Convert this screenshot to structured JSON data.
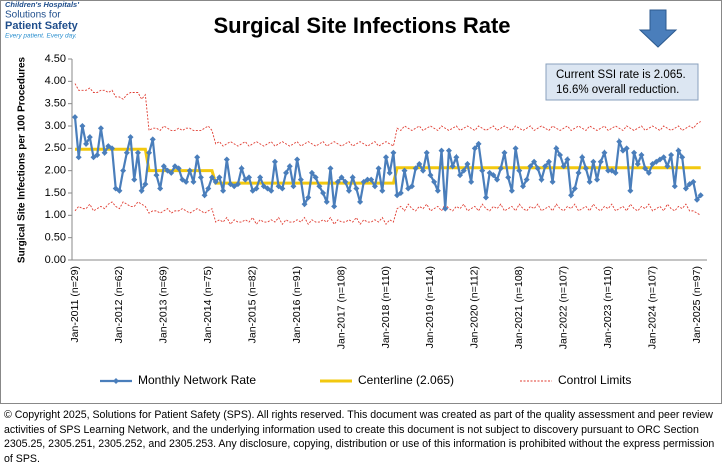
{
  "chart_data": {
    "type": "line",
    "title": "Surgical Site Infections Rate",
    "ylabel": "Surgical Site Infections per 100 Procedures",
    "annotation": [
      "Current SSI rate is 2.065.",
      "16.6% overall reduction."
    ],
    "logo": [
      "Children's Hospitals'",
      "Solutions for",
      "Patient Safety",
      "Every patient. Every day."
    ],
    "categories": [
      "Jan-2011 (n=29)",
      null,
      null,
      null,
      null,
      null,
      null,
      null,
      null,
      null,
      null,
      null,
      "Jan-2012 (n=62)",
      null,
      null,
      null,
      null,
      null,
      null,
      null,
      null,
      null,
      null,
      null,
      "Jan-2013 (n=69)",
      null,
      null,
      null,
      null,
      null,
      null,
      null,
      null,
      null,
      null,
      null,
      "Jan-2014 (n=75)",
      null,
      null,
      null,
      null,
      null,
      null,
      null,
      null,
      null,
      null,
      null,
      "Jan-2015 (n=82)",
      null,
      null,
      null,
      null,
      null,
      null,
      null,
      null,
      null,
      null,
      null,
      "Jan-2016 (n=91)",
      null,
      null,
      null,
      null,
      null,
      null,
      null,
      null,
      null,
      null,
      null,
      "Jan-2017 (n=108)",
      null,
      null,
      null,
      null,
      null,
      null,
      null,
      null,
      null,
      null,
      null,
      "Jan-2018 (n=110)",
      null,
      null,
      null,
      null,
      null,
      null,
      null,
      null,
      null,
      null,
      null,
      "Jan-2019 (n=114)",
      null,
      null,
      null,
      null,
      null,
      null,
      null,
      null,
      null,
      null,
      null,
      "Jan-2020 (n=112)",
      null,
      null,
      null,
      null,
      null,
      null,
      null,
      null,
      null,
      null,
      null,
      "Jan-2021 (n=108)",
      null,
      null,
      null,
      null,
      null,
      null,
      null,
      null,
      null,
      null,
      null,
      "Jan-2022 (n=107)",
      null,
      null,
      null,
      null,
      null,
      null,
      null,
      null,
      null,
      null,
      null,
      "Jan-2023 (n=110)",
      null,
      null,
      null,
      null,
      null,
      null,
      null,
      null,
      null,
      null,
      null,
      "Jan-2024 (n=107)",
      null,
      null,
      null,
      null,
      null,
      null,
      null,
      null,
      null,
      null,
      null,
      "Jan-2025 (n=97)",
      null
    ],
    "series": [
      {
        "name": "Monthly Network Rate",
        "color": "#4a7ebb",
        "values": [
          3.2,
          2.3,
          3.0,
          2.6,
          2.75,
          2.3,
          2.35,
          2.95,
          2.4,
          2.55,
          2.5,
          1.6,
          1.55,
          2.0,
          2.4,
          2.75,
          1.8,
          2.4,
          1.55,
          1.7,
          2.4,
          2.7,
          1.9,
          1.6,
          2.1,
          2.0,
          1.95,
          2.1,
          2.05,
          1.8,
          1.75,
          2.0,
          1.75,
          2.3,
          1.85,
          1.45,
          1.6,
          1.85,
          1.75,
          1.85,
          1.55,
          2.25,
          1.7,
          1.65,
          1.7,
          2.05,
          1.8,
          1.85,
          1.55,
          1.6,
          1.85,
          1.65,
          1.6,
          1.55,
          2.2,
          1.65,
          1.6,
          1.95,
          2.1,
          1.65,
          2.25,
          1.8,
          1.25,
          1.4,
          1.95,
          1.85,
          1.65,
          1.5,
          1.3,
          2.05,
          1.2,
          1.75,
          1.85,
          1.75,
          1.55,
          1.85,
          1.6,
          1.3,
          1.75,
          1.8,
          1.8,
          1.65,
          2.05,
          1.55,
          2.3,
          1.95,
          2.4,
          1.45,
          1.5,
          2.0,
          1.6,
          1.65,
          2.05,
          2.15,
          2.0,
          2.4,
          1.9,
          1.75,
          1.55,
          2.45,
          1.15,
          2.45,
          2.1,
          2.3,
          1.9,
          2.0,
          2.15,
          1.75,
          2.5,
          2.6,
          2.0,
          1.4,
          1.95,
          1.9,
          1.8,
          2.05,
          2.4,
          1.85,
          1.55,
          2.5,
          2.0,
          1.65,
          1.8,
          2.1,
          2.2,
          2.05,
          1.8,
          2.1,
          2.2,
          1.75,
          2.5,
          2.35,
          2.1,
          2.25,
          1.45,
          1.6,
          1.95,
          2.3,
          2.05,
          1.75,
          2.2,
          1.8,
          2.2,
          2.4,
          2.0,
          2.0,
          1.95,
          2.65,
          2.45,
          2.5,
          1.55,
          2.4,
          2.15,
          2.35,
          2.05,
          1.95,
          2.15,
          2.2,
          2.25,
          2.3,
          2.1,
          2.35,
          1.65,
          2.45,
          2.3,
          1.6,
          1.7,
          1.75,
          1.35,
          1.45
        ]
      },
      {
        "name": "Centerline (2.065)",
        "color": "#f2c80f",
        "values": [
          2.48,
          2.48,
          2.48,
          2.48,
          2.48,
          2.48,
          2.48,
          2.48,
          2.48,
          2.48,
          2.48,
          2.48,
          2.48,
          2.48,
          2.48,
          2.48,
          2.48,
          2.48,
          2.48,
          2.48,
          2.0,
          2.0,
          2.0,
          2.0,
          2.0,
          2.0,
          2.0,
          2.0,
          2.0,
          2.0,
          2.0,
          2.0,
          2.0,
          2.0,
          2.0,
          2.0,
          2.0,
          2.0,
          1.72,
          1.72,
          1.72,
          1.72,
          1.72,
          1.72,
          1.72,
          1.72,
          1.72,
          1.72,
          1.72,
          1.72,
          1.72,
          1.72,
          1.72,
          1.72,
          1.72,
          1.72,
          1.72,
          1.72,
          1.72,
          1.72,
          1.72,
          1.72,
          1.72,
          1.72,
          1.72,
          1.72,
          1.72,
          1.72,
          1.72,
          1.72,
          1.72,
          1.72,
          1.72,
          1.72,
          1.72,
          1.72,
          1.72,
          1.72,
          1.72,
          1.72,
          1.72,
          1.72,
          1.72,
          1.72,
          1.72,
          1.72,
          1.72,
          2.065,
          2.065,
          2.065,
          2.065,
          2.065,
          2.065,
          2.065,
          2.065,
          2.065,
          2.065,
          2.065,
          2.065,
          2.065,
          2.065,
          2.065,
          2.065,
          2.065,
          2.065,
          2.065,
          2.065,
          2.065,
          2.065,
          2.065,
          2.065,
          2.065,
          2.065,
          2.065,
          2.065,
          2.065,
          2.065,
          2.065,
          2.065,
          2.065,
          2.065,
          2.065,
          2.065,
          2.065,
          2.065,
          2.065,
          2.065,
          2.065,
          2.065,
          2.065,
          2.065,
          2.065,
          2.065,
          2.065,
          2.065,
          2.065,
          2.065,
          2.065,
          2.065,
          2.065,
          2.065,
          2.065,
          2.065,
          2.065,
          2.065,
          2.065,
          2.065,
          2.065,
          2.065,
          2.065,
          2.065,
          2.065,
          2.065,
          2.065,
          2.065,
          2.065,
          2.065,
          2.065,
          2.065,
          2.065,
          2.065,
          2.065,
          2.065,
          2.065,
          2.065,
          2.065,
          2.065,
          2.065,
          2.065,
          2.065
        ]
      },
      {
        "name": "Control Limits",
        "color": "#e03c31",
        "upper": [
          3.95,
          3.8,
          3.8,
          3.8,
          3.85,
          3.75,
          3.75,
          3.8,
          3.8,
          3.75,
          3.8,
          3.65,
          3.65,
          3.6,
          3.7,
          3.75,
          3.75,
          3.75,
          3.6,
          3.7,
          2.9,
          2.95,
          2.95,
          2.9,
          3.0,
          2.95,
          2.9,
          2.9,
          2.95,
          2.9,
          2.95,
          2.95,
          2.9,
          2.9,
          2.9,
          2.95,
          3.0,
          2.9,
          2.6,
          2.65,
          2.55,
          2.6,
          2.65,
          2.6,
          2.55,
          2.6,
          2.65,
          2.55,
          2.6,
          2.65,
          2.6,
          2.55,
          2.6,
          2.65,
          2.55,
          2.6,
          2.65,
          2.6,
          2.55,
          2.6,
          2.65,
          2.55,
          2.6,
          2.65,
          2.6,
          2.55,
          2.6,
          2.65,
          2.55,
          2.6,
          2.65,
          2.6,
          2.55,
          2.6,
          2.65,
          2.55,
          2.6,
          2.65,
          2.6,
          2.55,
          2.6,
          2.65,
          2.55,
          2.6,
          2.65,
          2.6,
          2.55,
          2.95,
          2.9,
          3.0,
          2.95,
          2.9,
          2.95,
          3.0,
          2.9,
          2.95,
          3.0,
          2.95,
          2.9,
          3.0,
          2.95,
          2.9,
          2.95,
          3.0,
          2.9,
          2.95,
          3.0,
          2.95,
          2.9,
          3.0,
          2.95,
          2.9,
          2.95,
          3.0,
          2.9,
          2.95,
          3.0,
          2.95,
          2.9,
          3.0,
          2.95,
          2.9,
          2.95,
          3.0,
          2.9,
          2.95,
          3.0,
          2.95,
          2.9,
          3.0,
          2.95,
          2.9,
          2.95,
          3.0,
          2.9,
          2.95,
          3.0,
          2.95,
          2.9,
          3.0,
          2.95,
          2.9,
          2.95,
          3.0,
          2.9,
          2.95,
          3.0,
          2.95,
          2.9,
          3.0,
          2.95,
          2.9,
          2.95,
          3.0,
          2.9,
          2.95,
          3.0,
          2.95,
          2.9,
          3.0,
          2.95,
          2.9,
          2.95,
          3.0,
          2.9,
          2.95,
          3.0,
          2.95,
          3.05,
          3.1
        ],
        "lower": [
          1.1,
          1.2,
          1.15,
          1.15,
          1.25,
          1.1,
          1.15,
          1.2,
          1.15,
          1.25,
          1.3,
          1.2,
          1.15,
          1.3,
          1.25,
          1.2,
          1.2,
          1.3,
          1.25,
          1.2,
          1.05,
          1.1,
          1.1,
          1.05,
          1.1,
          1.15,
          1.05,
          1.1,
          1.1,
          1.15,
          1.1,
          1.05,
          1.1,
          1.15,
          1.1,
          1.05,
          1.1,
          1.15,
          0.85,
          0.9,
          0.85,
          0.95,
          0.8,
          0.9,
          0.85,
          0.85,
          0.9,
          0.85,
          0.95,
          0.8,
          0.9,
          0.85,
          0.85,
          0.9,
          0.85,
          0.95,
          0.8,
          0.9,
          0.85,
          0.85,
          0.9,
          0.85,
          0.95,
          0.8,
          0.9,
          0.85,
          0.85,
          0.9,
          0.85,
          0.95,
          0.8,
          0.9,
          0.85,
          0.85,
          0.9,
          0.85,
          0.95,
          0.8,
          0.9,
          0.85,
          0.85,
          0.9,
          0.85,
          0.95,
          0.8,
          0.9,
          0.85,
          1.15,
          1.2,
          1.1,
          1.25,
          1.15,
          1.1,
          1.2,
          1.15,
          1.25,
          1.1,
          1.15,
          1.2,
          1.1,
          1.25,
          1.15,
          1.1,
          1.2,
          1.15,
          1.25,
          1.1,
          1.15,
          1.2,
          1.1,
          1.25,
          1.15,
          1.1,
          1.2,
          1.15,
          1.25,
          1.1,
          1.15,
          1.2,
          1.1,
          1.25,
          1.15,
          1.1,
          1.2,
          1.15,
          1.25,
          1.1,
          1.15,
          1.2,
          1.1,
          1.25,
          1.15,
          1.1,
          1.2,
          1.15,
          1.25,
          1.1,
          1.15,
          1.2,
          1.1,
          1.25,
          1.15,
          1.1,
          1.2,
          1.15,
          1.25,
          1.1,
          1.15,
          1.2,
          1.1,
          1.25,
          1.15,
          1.1,
          1.2,
          1.15,
          1.25,
          1.1,
          1.15,
          1.2,
          1.1,
          1.25,
          1.15,
          1.1,
          1.2,
          1.15,
          1.25,
          1.1,
          1.1,
          1.05,
          1.0
        ]
      }
    ],
    "ylim": [
      0,
      4.5
    ],
    "yticks": [
      {
        "value": 0,
        "label": "0.00"
      },
      {
        "value": 0.5,
        "label": "0.50"
      },
      {
        "value": 1,
        "label": "1.00"
      },
      {
        "value": 1.5,
        "label": "1.50"
      },
      {
        "value": 2,
        "label": "2.00"
      },
      {
        "value": 2.5,
        "label": "2.50"
      },
      {
        "value": 3,
        "label": "3.00"
      },
      {
        "value": 3.5,
        "label": "3.50"
      },
      {
        "value": 4,
        "label": "4.00"
      },
      {
        "value": 4.5,
        "label": "4.50"
      }
    ],
    "grid": false
  },
  "footer": "© Copyright 2025, Solutions for Patient Safety (SPS).  All rights reserved.  This document was created as part of the quality assessment and peer review activities of SPS Learning Network, and the underlying information used to create this document is not subject to discovery pursuant to ORC Section 2305.25, 2305.251, 2305.252, and 2305.253. Any disclosure, copying, distribution or use of this information is prohibited without the express permission of SPS."
}
